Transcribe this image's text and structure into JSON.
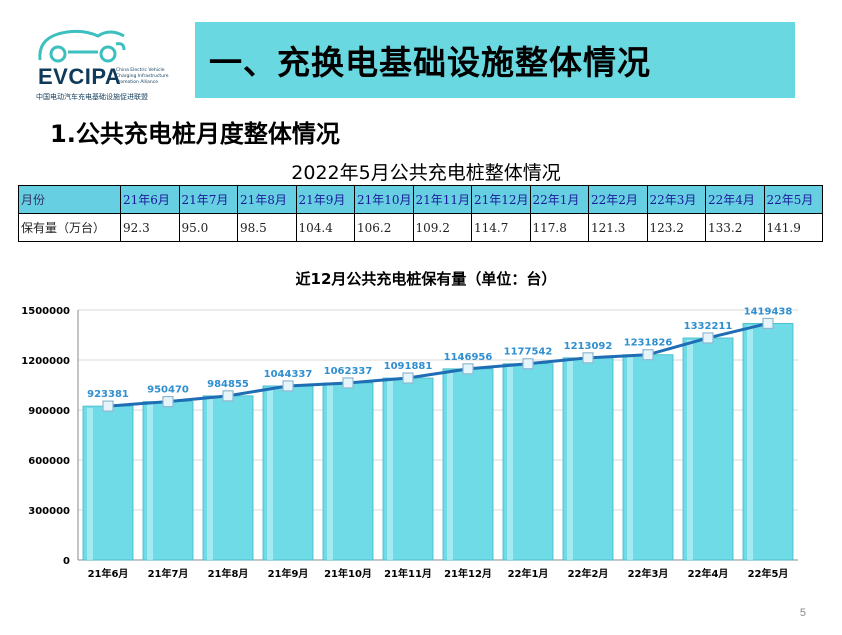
{
  "logo": {
    "name": "EVCIPA",
    "subtitle_en": "China Electric Vehicle Charging Infrastructure Promotion Alliance",
    "subtitle_cn": "中国电动汽车充电基础设施促进联盟"
  },
  "banner": {
    "title": "一、充换电基础设施整体情况"
  },
  "section": {
    "heading": "1.公共充电桩月度整体情况"
  },
  "table": {
    "title": "2022年5月公共充电桩整体情况",
    "header_label": "月份",
    "row_label": "保有量（万台）",
    "months": [
      "21年6月",
      "21年7月",
      "21年8月",
      "21年9月",
      "21年10月",
      "21年11月",
      "21年12月",
      "22年1月",
      "22年2月",
      "22年3月",
      "22年4月",
      "22年5月"
    ],
    "values": [
      "92.3",
      "95.0",
      "98.5",
      "104.4",
      "106.2",
      "109.2",
      "114.7",
      "117.8",
      "121.3",
      "123.2",
      "133.2",
      "141.9"
    ]
  },
  "chart_data": {
    "type": "bar",
    "title": "近12月公共充电桩保有量（单位：台）",
    "categories": [
      "21年6月",
      "21年7月",
      "21年8月",
      "21年9月",
      "21年10月",
      "21年11月",
      "21年12月",
      "22年1月",
      "22年2月",
      "22年3月",
      "22年4月",
      "22年5月"
    ],
    "series": [
      {
        "values": [
          923381,
          950470,
          984855,
          1044337,
          1062337,
          1091881,
          1146956,
          1177542,
          1213092,
          1231826,
          1332211,
          1419438
        ]
      }
    ],
    "overlay_line": true,
    "yticks": [
      "0",
      "300000",
      "600000",
      "900000",
      "1200000",
      "1500000"
    ],
    "ylim": [
      0,
      1500000
    ],
    "grid": true,
    "colors": {
      "bar": "#6fdbe6",
      "bar_edge": "#3fb8c8",
      "line": "#1f6db5",
      "label": "#2f8fd0"
    }
  },
  "page": {
    "number": "5"
  }
}
